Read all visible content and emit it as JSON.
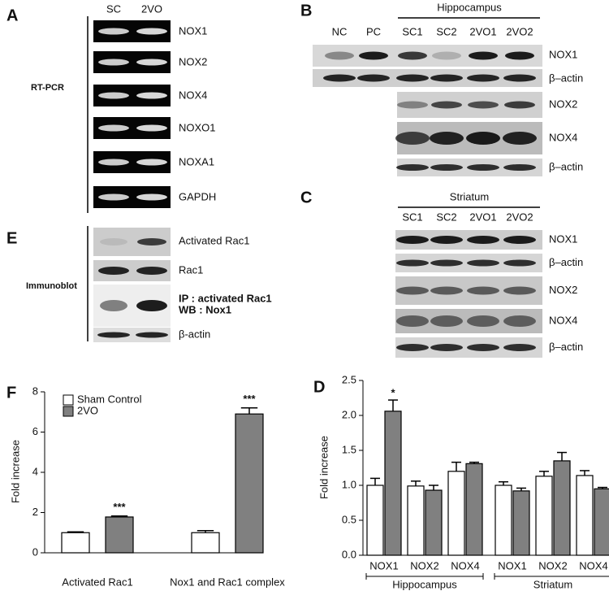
{
  "panels": {
    "A": {
      "label": "A",
      "lanes": [
        "SC",
        "2VO"
      ],
      "rows": [
        "NOX1",
        "NOX2",
        "NOX4",
        "NOXO1",
        "NOXA1",
        "GAPDH"
      ],
      "method": "RT-PCR"
    },
    "B": {
      "label": "B",
      "lanes": [
        "NC",
        "PC",
        "SC1",
        "SC2",
        "2VO1",
        "2VO2"
      ],
      "region": "Hippocampus",
      "rows": [
        "NOX1",
        "β–actin",
        "NOX2",
        "NOX4",
        "β–actin"
      ]
    },
    "C": {
      "label": "C",
      "region": "Striatum",
      "lanes": [
        "SC1",
        "SC2",
        "2VO1",
        "2VO2"
      ],
      "rows": [
        "NOX1",
        "β–actin",
        "NOX2",
        "NOX4",
        "β–actin"
      ]
    },
    "E": {
      "label": "E",
      "method": "Immunoblot",
      "rows": [
        "Activated Rac1",
        "Rac1",
        "IP : activated Rac1",
        "WB : Nox1",
        "β-actin"
      ]
    }
  },
  "chart_data": [
    {
      "type": "bar",
      "label": "F",
      "ylabel": "Fold increase",
      "categories": [
        "Activated Rac1",
        "Nox1 and Rac1 complex"
      ],
      "series": [
        {
          "name": "Sham Control",
          "color": "#ffffff",
          "values": [
            1.0,
            1.0
          ],
          "errors": [
            0.04,
            0.1
          ]
        },
        {
          "name": "2VO",
          "color": "#808080",
          "values": [
            1.78,
            6.9
          ],
          "errors": [
            0.05,
            0.3
          ],
          "marks": [
            "***",
            "***"
          ]
        }
      ],
      "ylim": [
        0,
        8
      ],
      "yticks": [
        0,
        2,
        4,
        6,
        8
      ],
      "legend": "upper left"
    },
    {
      "type": "bar",
      "label": "D",
      "ylabel": "Fold increase",
      "groups": [
        {
          "label": "Hippocampus",
          "categories": [
            "NOX1",
            "NOX2",
            "NOX4"
          ]
        },
        {
          "label": "Striatum",
          "categories": [
            "NOX1",
            "NOX2",
            "NOX4"
          ]
        }
      ],
      "series": [
        {
          "color": "#ffffff",
          "values": [
            1.0,
            0.99,
            1.2,
            1.0,
            1.13,
            1.14
          ],
          "errors": [
            0.1,
            0.07,
            0.13,
            0.05,
            0.07,
            0.07
          ]
        },
        {
          "color": "#808080",
          "values": [
            2.06,
            0.93,
            1.31,
            0.92,
            1.35,
            0.95
          ],
          "errors": [
            0.16,
            0.07,
            0.02,
            0.04,
            0.12,
            0.02
          ],
          "marks": [
            "*",
            null,
            null,
            null,
            null,
            null
          ]
        }
      ],
      "ylim": [
        0,
        2.5
      ],
      "yticks": [
        {
          "value": 0,
          "label": "0.0"
        },
        {
          "value": 0.5,
          "label": "0.5"
        },
        {
          "value": 1,
          "label": "1.0"
        },
        {
          "value": 1.5,
          "label": "1.5"
        },
        {
          "value": 2,
          "label": "2.0"
        },
        {
          "value": 2.5,
          "label": "2.5"
        }
      ]
    }
  ]
}
